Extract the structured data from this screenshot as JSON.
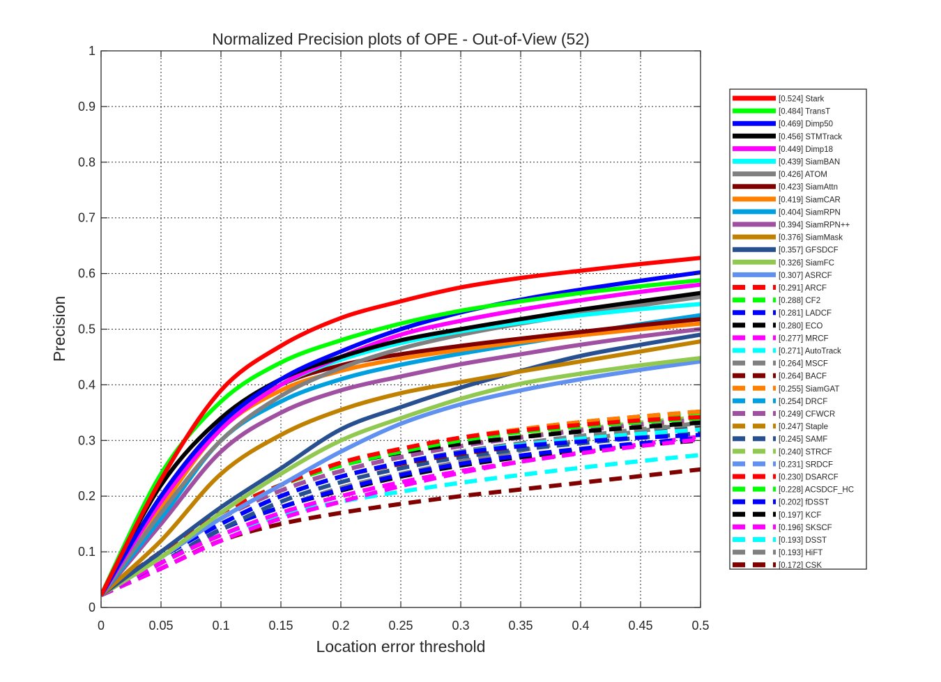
{
  "chart_data": {
    "type": "line",
    "title": "Normalized Precision plots of OPE - Out-of-View (52)",
    "xlabel": "Location error threshold",
    "ylabel": "Precision",
    "xlim": [
      0,
      0.5
    ],
    "ylim": [
      0,
      1
    ],
    "xticks": [
      "0",
      "0.05",
      "0.1",
      "0.15",
      "0.2",
      "0.25",
      "0.3",
      "0.35",
      "0.4",
      "0.45",
      "0.5"
    ],
    "yticks": [
      "0",
      "0.1",
      "0.2",
      "0.3",
      "0.4",
      "0.5",
      "0.6",
      "0.7",
      "0.8",
      "0.9",
      "1"
    ],
    "grid": true,
    "legend_position": "right outside",
    "x": [
      0,
      0.05,
      0.1,
      0.15,
      0.2,
      0.25,
      0.3,
      0.35,
      0.4,
      0.45,
      0.5
    ],
    "series": [
      {
        "name": "[0.524] Stark",
        "color": "#ff0000",
        "dash": false,
        "values": [
          0.022,
          0.23,
          0.39,
          0.47,
          0.52,
          0.55,
          0.575,
          0.592,
          0.605,
          0.617,
          0.628
        ]
      },
      {
        "name": "[0.484] TransT",
        "color": "#00ff00",
        "dash": false,
        "values": [
          0.022,
          0.24,
          0.37,
          0.44,
          0.48,
          0.51,
          0.533,
          0.55,
          0.565,
          0.577,
          0.588
        ]
      },
      {
        "name": "[0.469] Dimp50",
        "color": "#0000ff",
        "dash": false,
        "values": [
          0.022,
          0.2,
          0.33,
          0.41,
          0.46,
          0.5,
          0.53,
          0.553,
          0.571,
          0.587,
          0.602
        ]
      },
      {
        "name": "[0.456] STMTrack",
        "color": "#000000",
        "dash": false,
        "values": [
          0.022,
          0.22,
          0.34,
          0.41,
          0.45,
          0.48,
          0.5,
          0.518,
          0.535,
          0.55,
          0.565
        ]
      },
      {
        "name": "[0.449] Dimp18",
        "color": "#ff00ff",
        "dash": false,
        "values": [
          0.022,
          0.19,
          0.32,
          0.4,
          0.45,
          0.49,
          0.515,
          0.535,
          0.552,
          0.567,
          0.58
        ]
      },
      {
        "name": "[0.439] SiamBAN",
        "color": "#00ffff",
        "dash": false,
        "values": [
          0.022,
          0.19,
          0.32,
          0.4,
          0.445,
          0.475,
          0.496,
          0.512,
          0.525,
          0.536,
          0.545
        ]
      },
      {
        "name": "[0.426] ATOM",
        "color": "#808080",
        "dash": false,
        "values": [
          0.022,
          0.17,
          0.3,
          0.38,
          0.43,
          0.465,
          0.49,
          0.51,
          0.527,
          0.543,
          0.558
        ]
      },
      {
        "name": "[0.423] SiamAttn",
        "color": "#800000",
        "dash": false,
        "values": [
          0.022,
          0.2,
          0.33,
          0.4,
          0.435,
          0.455,
          0.47,
          0.483,
          0.495,
          0.507,
          0.518
        ]
      },
      {
        "name": "[0.419] SiamCAR",
        "color": "#ff8000",
        "dash": false,
        "values": [
          0.022,
          0.18,
          0.32,
          0.39,
          0.425,
          0.447,
          0.463,
          0.477,
          0.489,
          0.5,
          0.51
        ]
      },
      {
        "name": "[0.404] SiamRPN",
        "color": "#00a0e0",
        "dash": false,
        "values": [
          0.022,
          0.16,
          0.3,
          0.37,
          0.41,
          0.436,
          0.456,
          0.474,
          0.492,
          0.509,
          0.525
        ]
      },
      {
        "name": "[0.394] SiamRPN++",
        "color": "#a050a0",
        "dash": false,
        "values": [
          0.022,
          0.15,
          0.28,
          0.35,
          0.39,
          0.415,
          0.437,
          0.455,
          0.472,
          0.487,
          0.5
        ]
      },
      {
        "name": "[0.376] SiamMask",
        "color": "#c08000",
        "dash": false,
        "values": [
          0.022,
          0.12,
          0.24,
          0.31,
          0.355,
          0.385,
          0.405,
          0.424,
          0.442,
          0.46,
          0.478
        ]
      },
      {
        "name": "[0.357] GFSDCF",
        "color": "#285090",
        "dash": false,
        "values": [
          0.022,
          0.1,
          0.18,
          0.25,
          0.32,
          0.36,
          0.395,
          0.425,
          0.452,
          0.472,
          0.49
        ]
      },
      {
        "name": "[0.326] SiamFC",
        "color": "#90c850",
        "dash": false,
        "values": [
          0.022,
          0.09,
          0.17,
          0.24,
          0.3,
          0.34,
          0.375,
          0.402,
          0.42,
          0.435,
          0.448
        ]
      },
      {
        "name": "[0.307] ASRCF",
        "color": "#6090f0",
        "dash": false,
        "values": [
          0.022,
          0.09,
          0.16,
          0.22,
          0.28,
          0.33,
          0.365,
          0.39,
          0.41,
          0.427,
          0.442
        ]
      },
      {
        "name": "[0.291] ARCF",
        "color": "#ff0000",
        "dash": true,
        "values": [
          0.022,
          0.1,
          0.17,
          0.22,
          0.26,
          0.285,
          0.305,
          0.318,
          0.328,
          0.336,
          0.342
        ]
      },
      {
        "name": "[0.288] CF2",
        "color": "#00ff00",
        "dash": true,
        "values": [
          0.022,
          0.1,
          0.17,
          0.22,
          0.255,
          0.28,
          0.3,
          0.315,
          0.325,
          0.333,
          0.34
        ]
      },
      {
        "name": "[0.281] LADCF",
        "color": "#0000ff",
        "dash": true,
        "values": [
          0.022,
          0.09,
          0.15,
          0.2,
          0.235,
          0.26,
          0.278,
          0.29,
          0.298,
          0.305,
          0.31
        ]
      },
      {
        "name": "[0.280] ECO",
        "color": "#000000",
        "dash": true,
        "values": [
          0.022,
          0.1,
          0.17,
          0.22,
          0.255,
          0.278,
          0.294,
          0.306,
          0.316,
          0.324,
          0.332
        ]
      },
      {
        "name": "[0.277] MRCF",
        "color": "#ff00ff",
        "dash": true,
        "values": [
          0.022,
          0.08,
          0.13,
          0.17,
          0.2,
          0.225,
          0.245,
          0.262,
          0.277,
          0.29,
          0.302
        ]
      },
      {
        "name": "[0.271] AutoTrack",
        "color": "#00ffff",
        "dash": true,
        "values": [
          0.022,
          0.09,
          0.15,
          0.2,
          0.235,
          0.26,
          0.278,
          0.292,
          0.303,
          0.312,
          0.32
        ]
      },
      {
        "name": "[0.264] MSCF",
        "color": "#808080",
        "dash": true,
        "values": [
          0.022,
          0.09,
          0.15,
          0.2,
          0.235,
          0.26,
          0.28,
          0.295,
          0.308,
          0.32,
          0.33
        ]
      },
      {
        "name": "[0.264] BACF",
        "color": "#800000",
        "dash": true,
        "values": [
          0.022,
          0.09,
          0.15,
          0.2,
          0.235,
          0.258,
          0.276,
          0.29,
          0.302,
          0.312,
          0.322
        ]
      },
      {
        "name": "[0.255] SiamGAT",
        "color": "#ff8000",
        "dash": true,
        "values": [
          0.022,
          0.1,
          0.17,
          0.22,
          0.26,
          0.285,
          0.305,
          0.32,
          0.333,
          0.343,
          0.352
        ]
      },
      {
        "name": "[0.254] DRCF",
        "color": "#00a0e0",
        "dash": true,
        "values": [
          0.022,
          0.09,
          0.15,
          0.2,
          0.235,
          0.26,
          0.28,
          0.295,
          0.308,
          0.319,
          0.328
        ]
      },
      {
        "name": "[0.249] CFWCR",
        "color": "#a050a0",
        "dash": true,
        "values": [
          0.022,
          0.09,
          0.16,
          0.21,
          0.245,
          0.27,
          0.29,
          0.305,
          0.318,
          0.329,
          0.338
        ]
      },
      {
        "name": "[0.247] Staple",
        "color": "#c08000",
        "dash": true,
        "values": [
          0.022,
          0.09,
          0.16,
          0.21,
          0.245,
          0.27,
          0.29,
          0.306,
          0.318,
          0.328,
          0.336
        ]
      },
      {
        "name": "[0.245] SAMF",
        "color": "#285090",
        "dash": true,
        "values": [
          0.022,
          0.08,
          0.14,
          0.19,
          0.225,
          0.25,
          0.27,
          0.284,
          0.295,
          0.305,
          0.313
        ]
      },
      {
        "name": "[0.240] STRCF",
        "color": "#90c850",
        "dash": true,
        "values": [
          0.022,
          0.09,
          0.16,
          0.21,
          0.245,
          0.27,
          0.29,
          0.306,
          0.32,
          0.332,
          0.342
        ]
      },
      {
        "name": "[0.231] SRDCF",
        "color": "#6090f0",
        "dash": true,
        "values": [
          0.022,
          0.09,
          0.15,
          0.2,
          0.235,
          0.26,
          0.28,
          0.295,
          0.308,
          0.319,
          0.328
        ]
      },
      {
        "name": "[0.230] DSARCF",
        "color": "#ff0000",
        "dash": true,
        "values": [
          0.022,
          0.1,
          0.17,
          0.22,
          0.26,
          0.285,
          0.305,
          0.32,
          0.333,
          0.343,
          0.352
        ]
      },
      {
        "name": "[0.228] ACSDCF_HC",
        "color": "#00ff00",
        "dash": true,
        "values": [
          0.022,
          0.1,
          0.17,
          0.22,
          0.256,
          0.281,
          0.302,
          0.318,
          0.331,
          0.342,
          0.35
        ]
      },
      {
        "name": "[0.202] fDSST",
        "color": "#0000ff",
        "dash": true,
        "values": [
          0.022,
          0.08,
          0.14,
          0.18,
          0.212,
          0.238,
          0.258,
          0.273,
          0.285,
          0.295,
          0.304
        ]
      },
      {
        "name": "[0.197] KCF",
        "color": "#000000",
        "dash": true,
        "values": [
          0.022,
          0.08,
          0.14,
          0.18,
          0.21,
          0.235,
          0.255,
          0.27,
          0.282,
          0.292,
          0.3
        ]
      },
      {
        "name": "[0.196] SKSCF",
        "color": "#ff00ff",
        "dash": true,
        "values": [
          0.022,
          0.07,
          0.12,
          0.16,
          0.19,
          0.218,
          0.242,
          0.262,
          0.278,
          0.293,
          0.307
        ]
      },
      {
        "name": "[0.193] DSST",
        "color": "#00ffff",
        "dash": true,
        "values": [
          0.022,
          0.08,
          0.13,
          0.165,
          0.19,
          0.208,
          0.224,
          0.238,
          0.251,
          0.263,
          0.274
        ]
      },
      {
        "name": "[0.193] HiFT",
        "color": "#808080",
        "dash": true,
        "values": [
          0.022,
          0.08,
          0.14,
          0.18,
          0.215,
          0.24,
          0.262,
          0.282,
          0.3,
          0.317,
          0.332
        ]
      },
      {
        "name": "[0.172] CSK",
        "color": "#800000",
        "dash": true,
        "values": [
          0.022,
          0.07,
          0.12,
          0.15,
          0.17,
          0.186,
          0.2,
          0.212,
          0.224,
          0.236,
          0.248
        ]
      }
    ]
  }
}
